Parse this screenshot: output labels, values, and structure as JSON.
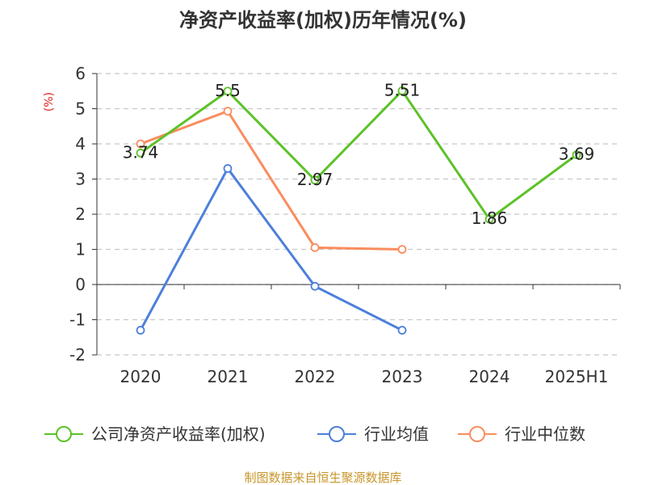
{
  "title": "净资产收益率(加权)历年情况(%)",
  "source": "制图数据来自恒生聚源数据库",
  "colors": {
    "company": "#5cc228",
    "industry_avg": "#4d7fdb",
    "industry_median": "#f98d5e"
  },
  "chart_data": {
    "type": "line",
    "title": "净资产收益率(加权)历年情况(%)",
    "ylabel": "(%)",
    "categories": [
      "2020",
      "2021",
      "2022",
      "2023",
      "2024",
      "2025H1"
    ],
    "ylim": [
      -2,
      6
    ],
    "yticks": [
      "6",
      "5",
      "4",
      "3",
      "2",
      "1",
      "0",
      "-1",
      "-2"
    ],
    "grid": true,
    "legend_position": "bottom",
    "series": [
      {
        "name": "公司净资产收益率(加权)",
        "values": [
          3.74,
          5.5,
          2.97,
          5.51,
          1.86,
          3.69
        ],
        "labels": [
          "3.74",
          "5.5",
          "2.97",
          "5.51",
          "1.86",
          "3.69"
        ]
      },
      {
        "name": "行业均值",
        "values": [
          -1.3,
          3.3,
          -0.05,
          -1.3,
          null,
          null
        ]
      },
      {
        "name": "行业中位数",
        "values": [
          4.0,
          4.93,
          1.05,
          1.0,
          null,
          null
        ]
      }
    ]
  }
}
